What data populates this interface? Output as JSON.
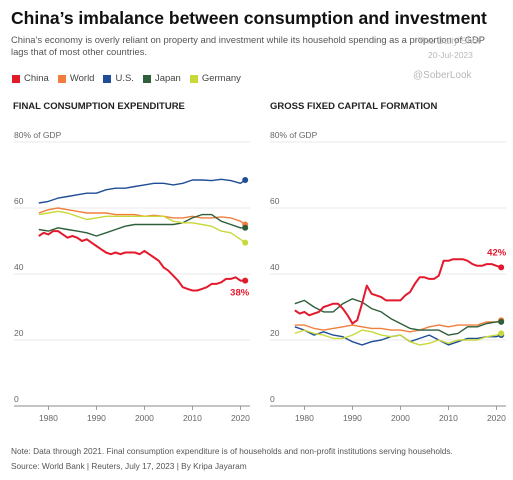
{
  "header": {
    "title": "China’s imbalance between consumption and investment",
    "subtitle": "China’s economy is overly reliant on property and investment while its household spending as a proportion of GDP lags that of most other countries.",
    "watermark_name": "The Daily Shot",
    "watermark_date": "20-Jul-2023",
    "watermark_handle": "@SoberLook"
  },
  "legend": [
    {
      "name": "China",
      "color": "#e31a2d"
    },
    {
      "name": "World",
      "color": "#f07f3c"
    },
    {
      "name": "U.S.",
      "color": "#1f4e96"
    },
    {
      "name": "Japan",
      "color": "#2e5e3a"
    },
    {
      "name": "Germany",
      "color": "#c9d93a"
    }
  ],
  "footer": {
    "note": "Note: Data through 2021. Final consumption expenditure is of households and non-profit institutions serving households.",
    "source": "Source: World Bank | Reuters, July 17, 2023 | By Kripa Jayaram"
  },
  "chart_data": [
    {
      "type": "line",
      "title": "FINAL CONSUMPTION EXPENDITURE",
      "ylim": [
        0,
        80
      ],
      "xlim": [
        1977,
        2022
      ],
      "yticks": [
        "0",
        "20",
        "40",
        "60",
        "80% of GDP"
      ],
      "ytick_values": [
        0,
        20,
        40,
        60,
        80
      ],
      "xticks": [
        "1980",
        "1990",
        "2000",
        "2010",
        "2020"
      ],
      "xtick_values": [
        1980,
        1990,
        2000,
        2010,
        2020
      ],
      "end_label": {
        "text": "38%",
        "series": "China"
      },
      "series": [
        {
          "name": "World",
          "color": "#f07f3c",
          "x": [
            1978,
            1980,
            1982,
            1984,
            1986,
            1988,
            1990,
            1992,
            1994,
            1996,
            1998,
            2000,
            2002,
            2004,
            2006,
            2008,
            2010,
            2012,
            2014,
            2016,
            2018,
            2020,
            2021
          ],
          "values": [
            58.5,
            59.5,
            60,
            59.5,
            59,
            58.5,
            58.5,
            58.5,
            58,
            58,
            58,
            57.5,
            57.8,
            57.5,
            57,
            57,
            57.5,
            57,
            57,
            57.3,
            57,
            56,
            55
          ]
        },
        {
          "name": "U.S.",
          "color": "#1f4e96",
          "x": [
            1978,
            1980,
            1982,
            1984,
            1986,
            1988,
            1990,
            1992,
            1994,
            1996,
            1998,
            2000,
            2002,
            2004,
            2006,
            2008,
            2010,
            2012,
            2014,
            2016,
            2018,
            2020,
            2021
          ],
          "values": [
            61.5,
            62,
            63,
            63.5,
            64,
            64.5,
            64.5,
            65.5,
            66,
            66,
            66.5,
            67,
            67.5,
            67.5,
            67,
            67.5,
            68.5,
            68.5,
            68.3,
            68.7,
            68.3,
            67.5,
            68.5
          ]
        },
        {
          "name": "Japan",
          "color": "#2e5e3a",
          "x": [
            1978,
            1980,
            1982,
            1984,
            1986,
            1988,
            1990,
            1992,
            1994,
            1996,
            1998,
            2000,
            2002,
            2004,
            2006,
            2008,
            2010,
            2012,
            2014,
            2016,
            2018,
            2020,
            2021
          ],
          "values": [
            53.5,
            53,
            54,
            53.5,
            53,
            52.5,
            51.5,
            52.5,
            53.5,
            54.5,
            55,
            55,
            55,
            55,
            55,
            55.5,
            57,
            58,
            58,
            56,
            55,
            54,
            54
          ]
        },
        {
          "name": "Germany",
          "color": "#c9d93a",
          "x": [
            1978,
            1980,
            1982,
            1984,
            1986,
            1988,
            1990,
            1992,
            1994,
            1996,
            1998,
            2000,
            2002,
            2004,
            2006,
            2008,
            2010,
            2012,
            2014,
            2016,
            2018,
            2020,
            2021
          ],
          "values": [
            58,
            58.5,
            59,
            58.5,
            57.5,
            56.5,
            57,
            57.5,
            57.5,
            57.5,
            57.5,
            57.5,
            57.5,
            57.5,
            56,
            55.5,
            55.5,
            55,
            54.5,
            53,
            52.5,
            50.5,
            49.5
          ]
        },
        {
          "name": "China",
          "color": "#e31a2d",
          "x": [
            1978,
            1979,
            1980,
            1981,
            1982,
            1983,
            1984,
            1985,
            1986,
            1987,
            1988,
            1989,
            1990,
            1991,
            1992,
            1993,
            1994,
            1995,
            1996,
            1997,
            1998,
            1999,
            2000,
            2001,
            2002,
            2003,
            2004,
            2005,
            2006,
            2007,
            2008,
            2009,
            2010,
            2011,
            2012,
            2013,
            2014,
            2015,
            2016,
            2017,
            2018,
            2019,
            2020,
            2021
          ],
          "values": [
            51.5,
            52.5,
            52,
            53,
            53,
            52,
            51,
            51.5,
            51,
            50,
            50.5,
            49.5,
            48.5,
            47.5,
            46.5,
            46,
            46.5,
            46,
            46.5,
            46.5,
            46.5,
            46,
            47,
            46,
            45,
            44,
            42,
            41,
            39.5,
            38,
            36,
            35.5,
            35,
            35,
            35.5,
            36,
            37,
            37,
            37.5,
            38.5,
            38.5,
            39,
            38,
            38
          ]
        }
      ]
    },
    {
      "type": "line",
      "title": "GROSS FIXED CAPITAL FORMATION",
      "ylim": [
        0,
        80
      ],
      "xlim": [
        1977,
        2022
      ],
      "yticks": [
        "0",
        "20",
        "40",
        "60",
        "80% of GDP"
      ],
      "ytick_values": [
        0,
        20,
        40,
        60,
        80
      ],
      "xticks": [
        "1980",
        "1990",
        "2000",
        "2010",
        "2020"
      ],
      "xtick_values": [
        1980,
        1990,
        2000,
        2010,
        2020
      ],
      "end_label": {
        "text": "42%",
        "series": "China"
      },
      "series": [
        {
          "name": "World",
          "color": "#f07f3c",
          "x": [
            1978,
            1980,
            1982,
            1984,
            1986,
            1988,
            1990,
            1992,
            1994,
            1996,
            1998,
            2000,
            2002,
            2004,
            2006,
            2008,
            2010,
            2012,
            2014,
            2016,
            2018,
            2020,
            2021
          ],
          "values": [
            24.5,
            24.5,
            23.5,
            23,
            23.5,
            24,
            24.5,
            24,
            23.5,
            23.5,
            23,
            23,
            22.5,
            23,
            24,
            24.5,
            24,
            24.5,
            24.5,
            24.5,
            25.5,
            25.5,
            26
          ]
        },
        {
          "name": "U.S.",
          "color": "#1f4e96",
          "x": [
            1978,
            1980,
            1982,
            1984,
            1986,
            1988,
            1990,
            1992,
            1994,
            1996,
            1998,
            2000,
            2002,
            2004,
            2006,
            2008,
            2010,
            2012,
            2014,
            2016,
            2018,
            2020,
            2021
          ],
          "values": [
            24,
            23,
            21.5,
            22.5,
            21.5,
            21,
            19.5,
            18.5,
            19.5,
            20,
            21,
            21.5,
            19.5,
            20.5,
            21.5,
            20,
            18.5,
            19.5,
            20.5,
            20.5,
            21,
            21,
            21.5
          ]
        },
        {
          "name": "Japan",
          "color": "#2e5e3a",
          "x": [
            1978,
            1980,
            1982,
            1984,
            1986,
            1988,
            1990,
            1992,
            1994,
            1996,
            1998,
            2000,
            2002,
            2004,
            2006,
            2008,
            2010,
            2012,
            2014,
            2016,
            2018,
            2020,
            2021
          ],
          "values": [
            31,
            32,
            30,
            28.5,
            28.5,
            31,
            32.5,
            31.5,
            29.5,
            28.5,
            26.5,
            25,
            23.5,
            23,
            23,
            23,
            21.5,
            22,
            24,
            24,
            25,
            25.5,
            25.5
          ]
        },
        {
          "name": "Germany",
          "color": "#c9d93a",
          "x": [
            1978,
            1980,
            1982,
            1984,
            1986,
            1988,
            1990,
            1992,
            1994,
            1996,
            1998,
            2000,
            2002,
            2004,
            2006,
            2008,
            2010,
            2012,
            2014,
            2016,
            2018,
            2020,
            2021
          ],
          "values": [
            22,
            23,
            22,
            21.5,
            20.5,
            20.5,
            21.5,
            23,
            22.5,
            21.5,
            21,
            21.5,
            19.5,
            18.5,
            19,
            20,
            19,
            20,
            20,
            20,
            21,
            21.5,
            22
          ]
        },
        {
          "name": "China",
          "color": "#e31a2d",
          "x": [
            1978,
            1979,
            1980,
            1981,
            1982,
            1983,
            1984,
            1985,
            1986,
            1987,
            1988,
            1989,
            1990,
            1991,
            1992,
            1993,
            1994,
            1995,
            1996,
            1997,
            1998,
            1999,
            2000,
            2001,
            2002,
            2003,
            2004,
            2005,
            2006,
            2007,
            2008,
            2009,
            2010,
            2011,
            2012,
            2013,
            2014,
            2015,
            2016,
            2017,
            2018,
            2019,
            2020,
            2021
          ],
          "values": [
            29,
            28,
            28.5,
            27.5,
            28,
            28.5,
            30,
            30.5,
            31,
            31,
            29.5,
            27.5,
            25,
            26,
            31,
            36.5,
            34,
            33.5,
            33,
            32,
            32,
            32,
            32,
            33.5,
            34.5,
            37,
            39,
            39,
            38.5,
            38.5,
            39.5,
            44,
            44,
            44.5,
            44.5,
            44.5,
            44,
            43,
            42.5,
            42.5,
            43,
            43,
            42.5,
            42
          ]
        }
      ]
    }
  ]
}
